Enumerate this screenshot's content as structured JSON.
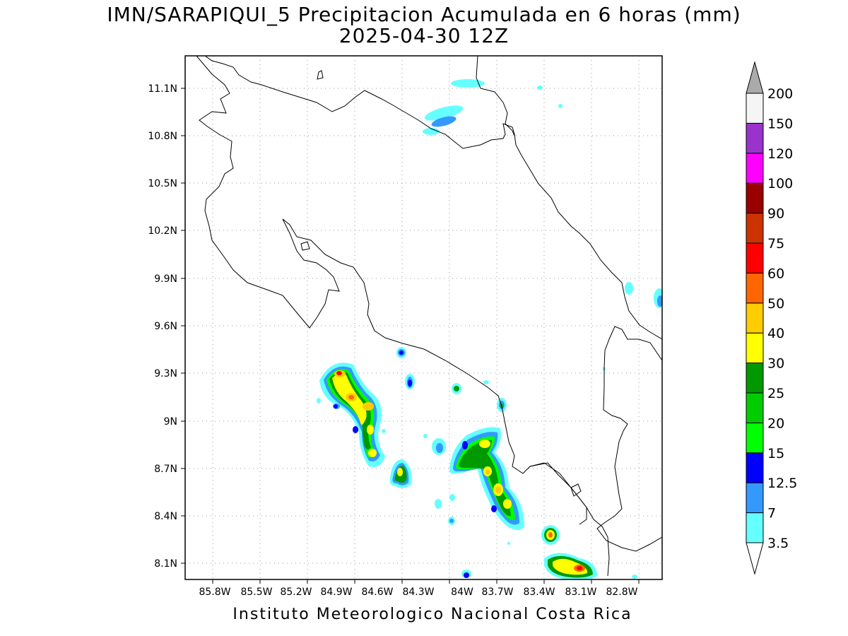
{
  "title_line1": "IMN/SARAPIQUI_5 Precipitacion Acumulada en 6 horas (mm)",
  "title_line2": "2025-04-30 12Z",
  "lon_ticks": [
    "85.8W",
    "85.5W",
    "85.2W",
    "84.9W",
    "84.6W",
    "84.3W",
    "84W",
    "83.7W",
    "83.4W",
    "83.1W",
    "82.8W"
  ],
  "lat_ticks": [
    "11.1N",
    "10.8N",
    "10.5N",
    "10.2N",
    "9.9N",
    "9.6N",
    "9.3N",
    "9N",
    "8.7N",
    "8.4N",
    "8.1N"
  ],
  "colorbar": {
    "labels": [
      "3.5",
      "7",
      "12.5",
      "15",
      "20",
      "25",
      "30",
      "40",
      "50",
      "60",
      "75",
      "90",
      "100",
      "120",
      "150",
      "200"
    ],
    "colors": [
      "#66ffff",
      "#3399ff",
      "#0000ff",
      "#00ff00",
      "#00cc00",
      "#009900",
      "#ffff00",
      "#ffcc00",
      "#ff6600",
      "#ff0000",
      "#cc3300",
      "#990000",
      "#ff00ff",
      "#9933cc",
      "#f5f5f5"
    ],
    "over_color": "#aaaaaa",
    "under_color": "#ffffff"
  },
  "credit": "Instituto Meteorologico Nacional Costa Rica"
}
